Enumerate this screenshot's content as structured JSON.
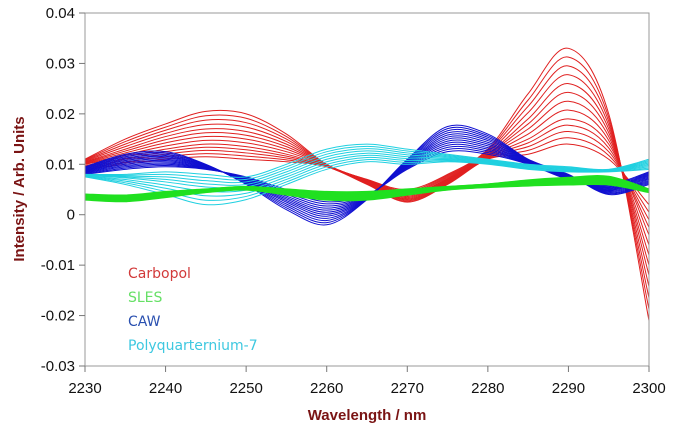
{
  "chart_data": {
    "type": "line",
    "title": "",
    "xlabel": "Wavelength / nm",
    "ylabel": "Intensity / Arb. Units",
    "xlim": [
      2230,
      2300
    ],
    "ylim": [
      -0.03,
      0.04
    ],
    "xticks": [
      2230,
      2240,
      2250,
      2260,
      2270,
      2280,
      2290,
      2300
    ],
    "yticks": [
      -0.03,
      -0.02,
      -0.01,
      0,
      0.01,
      0.02,
      0.03,
      0.04
    ],
    "ytick_labels": [
      "-0.03",
      "-0.02",
      "-0.01",
      "0",
      "0.01",
      "0.02",
      "0.03",
      "0.04"
    ],
    "grid": false,
    "legend_placement": "lower-left",
    "x": [
      2230,
      2235,
      2240,
      2245,
      2250,
      2255,
      2260,
      2265,
      2270,
      2275,
      2280,
      2285,
      2290,
      2295,
      2300
    ],
    "groups": [
      {
        "name": "Carbopol",
        "color": "#e02020",
        "curves": [
          [
            0.011,
            0.015,
            0.018,
            0.0205,
            0.02,
            0.016,
            0.01,
            0.007,
            0.005,
            0.008,
            0.013,
            0.024,
            0.033,
            0.02,
            -0.021
          ],
          [
            0.0105,
            0.013,
            0.0155,
            0.017,
            0.0165,
            0.014,
            0.0098,
            0.0068,
            0.004,
            0.0072,
            0.012,
            0.019,
            0.026,
            0.017,
            -0.012
          ],
          [
            0.01,
            0.0115,
            0.013,
            0.014,
            0.0135,
            0.012,
            0.0096,
            0.0065,
            0.0032,
            0.0066,
            0.0115,
            0.015,
            0.019,
            0.014,
            -0.004
          ],
          [
            0.009,
            0.01,
            0.011,
            0.0115,
            0.011,
            0.0105,
            0.0095,
            0.006,
            0.0025,
            0.006,
            0.011,
            0.012,
            0.014,
            0.011,
            0.002
          ]
        ]
      },
      {
        "name": "CAW",
        "color": "#1010d0",
        "curves": [
          [
            0.0095,
            0.012,
            0.0125,
            0.01,
            0.006,
            0.001,
            -0.002,
            0.003,
            0.011,
            0.0175,
            0.016,
            0.011,
            0.008,
            0.004,
            0.006
          ],
          [
            0.009,
            0.011,
            0.0115,
            0.0097,
            0.0065,
            0.0025,
            -0.0003,
            0.0033,
            0.0103,
            0.0158,
            0.0147,
            0.0107,
            0.0077,
            0.0047,
            0.0068
          ],
          [
            0.0085,
            0.01,
            0.0105,
            0.0093,
            0.007,
            0.0037,
            0.0013,
            0.0037,
            0.0097,
            0.0142,
            0.0133,
            0.0103,
            0.0073,
            0.0053,
            0.0077
          ],
          [
            0.008,
            0.009,
            0.0095,
            0.009,
            0.0075,
            0.005,
            0.003,
            0.004,
            0.009,
            0.0125,
            0.012,
            0.01,
            0.007,
            0.006,
            0.0085
          ]
        ]
      },
      {
        "name": "Polyquarternium-7",
        "color": "#20d0e0",
        "curves": [
          [
            0.008,
            0.008,
            0.0085,
            0.008,
            0.0075,
            0.01,
            0.013,
            0.014,
            0.013,
            0.012,
            0.011,
            0.01,
            0.0095,
            0.009,
            0.011
          ],
          [
            0.0078,
            0.0073,
            0.0065,
            0.0055,
            0.0055,
            0.008,
            0.011,
            0.0122,
            0.0115,
            0.0112,
            0.0105,
            0.0095,
            0.009,
            0.0088,
            0.01
          ],
          [
            0.0075,
            0.006,
            0.004,
            0.002,
            0.003,
            0.006,
            0.009,
            0.0105,
            0.01,
            0.0105,
            0.01,
            0.009,
            0.0085,
            0.0085,
            0.009
          ]
        ]
      },
      {
        "name": "SLES",
        "color": "#20e020",
        "curves": [
          [
            0.004,
            0.0038,
            0.0045,
            0.005,
            0.0055,
            0.005,
            0.0045,
            0.0045,
            0.005,
            0.0055,
            0.006,
            0.0068,
            0.0073,
            0.0075,
            0.005
          ],
          [
            0.0035,
            0.0033,
            0.004,
            0.0048,
            0.0053,
            0.0045,
            0.0038,
            0.0038,
            0.0045,
            0.0053,
            0.0058,
            0.0063,
            0.0067,
            0.0068,
            0.0048
          ],
          [
            0.003,
            0.0027,
            0.0035,
            0.0045,
            0.005,
            0.004,
            0.003,
            0.003,
            0.004,
            0.005,
            0.0055,
            0.0058,
            0.006,
            0.006,
            0.0045
          ]
        ]
      }
    ],
    "legend": [
      {
        "label": "Carbopol",
        "color": "#d23a3a"
      },
      {
        "label": "SLES",
        "color": "#66e066"
      },
      {
        "label": "CAW",
        "color": "#2a50b0"
      },
      {
        "label": "Polyquarternium-7",
        "color": "#3ec8e0"
      }
    ]
  }
}
